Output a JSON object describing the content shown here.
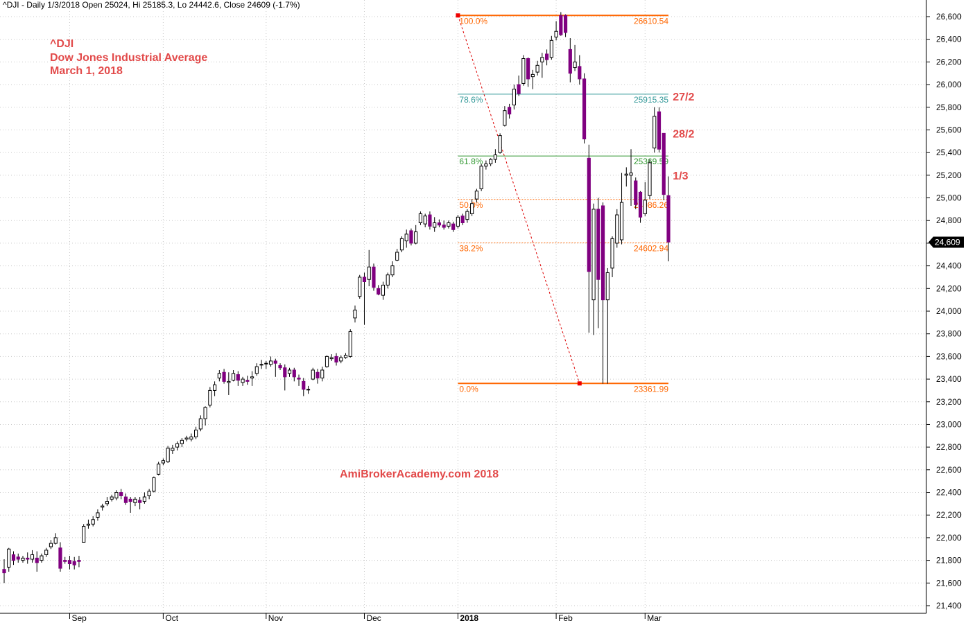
{
  "header": {
    "text": "^DJI - Daily 1/3/2018 Open 25024, Hi 25185.3, Lo 24442.6, Close 24609 (-1.7%)"
  },
  "chart_title": {
    "line1": "^DJI",
    "line2": "Dow Jones Industrial Average",
    "line3": "March 1, 2018"
  },
  "watermark": "AmiBrokerAcademy.com  2018",
  "colors": {
    "bearish": "#800080",
    "bullish_fill": "#ffffff",
    "outline": "#000000",
    "fib_extreme": "#ff6600",
    "fib_786": "#339999",
    "fib_618": "#339933",
    "fib_mid": "#ff6600",
    "annotation": "#e24a4a",
    "grid": "#c8c8c8",
    "price_tag_bg": "#000000",
    "price_tag_text": "#ffffff"
  },
  "chart_data": {
    "type": "candlestick",
    "symbol": "^DJI",
    "ylim": [
      21400,
      26700
    ],
    "y_ticks": [
      21400,
      21600,
      21800,
      22000,
      22200,
      22400,
      22600,
      22800,
      23000,
      23200,
      23400,
      23600,
      23800,
      24000,
      24200,
      24400,
      24600,
      24800,
      25000,
      25200,
      25400,
      25600,
      25800,
      26000,
      26200,
      26400,
      26600
    ],
    "y_tick_labels": [
      "21,400",
      "21,600",
      "21,800",
      "22,000",
      "22,200",
      "22,400",
      "22,600",
      "22,800",
      "23,000",
      "23,200",
      "23,400",
      "23,600",
      "23,800",
      "24,000",
      "24,200",
      "24,400",
      "24,600",
      "24,800",
      "25,000",
      "25,200",
      "25,400",
      "25,600",
      "25,800",
      "26,000",
      "26,200",
      "26,400",
      "26,600"
    ],
    "x_month_labels": [
      {
        "index": 14,
        "label": "Sep",
        "bold": false
      },
      {
        "index": 34,
        "label": "Oct",
        "bold": false
      },
      {
        "index": 56,
        "label": "Nov",
        "bold": false
      },
      {
        "index": 77,
        "label": "Dec",
        "bold": false
      },
      {
        "index": 97,
        "label": "2018",
        "bold": true
      },
      {
        "index": 118,
        "label": "Feb",
        "bold": false
      },
      {
        "index": 137,
        "label": "Mar",
        "bold": false
      }
    ],
    "last_price_label": "24,609",
    "last_price": 24609,
    "ohlc": [
      [
        21720,
        21690,
        21810,
        21600
      ],
      [
        21740,
        21900,
        21910,
        21700
      ],
      [
        21850,
        21800,
        21880,
        21760
      ],
      [
        21830,
        21810,
        21860,
        21780
      ],
      [
        21800,
        21820,
        21840,
        21780
      ],
      [
        21820,
        21810,
        21870,
        21770
      ],
      [
        21810,
        21850,
        21890,
        21780
      ],
      [
        21820,
        21780,
        21880,
        21700
      ],
      [
        21800,
        21840,
        21860,
        21780
      ],
      [
        21850,
        21890,
        21910,
        21830
      ],
      [
        21920,
        21950,
        21980,
        21900
      ],
      [
        21950,
        22000,
        22040,
        21940
      ],
      [
        21910,
        21730,
        21960,
        21700
      ],
      [
        21800,
        21790,
        21830,
        21770
      ],
      [
        21800,
        21770,
        21840,
        21720
      ],
      [
        21790,
        21760,
        21830,
        21720
      ],
      [
        21800,
        21790,
        21840,
        21740
      ],
      [
        21960,
        22100,
        22120,
        21960
      ],
      [
        22110,
        22120,
        22160,
        22080
      ],
      [
        22120,
        22160,
        22190,
        22100
      ],
      [
        22180,
        22220,
        22250,
        22150
      ],
      [
        22270,
        22280,
        22300,
        22240
      ],
      [
        22300,
        22320,
        22360,
        22280
      ],
      [
        22340,
        22360,
        22380,
        22320
      ],
      [
        22350,
        22400,
        22420,
        22330
      ],
      [
        22400,
        22370,
        22430,
        22340
      ],
      [
        22360,
        22310,
        22390,
        22290
      ],
      [
        22340,
        22320,
        22360,
        22220
      ],
      [
        22310,
        22340,
        22360,
        22280
      ],
      [
        22330,
        22310,
        22360,
        22250
      ],
      [
        22320,
        22360,
        22400,
        22300
      ],
      [
        22370,
        22410,
        22430,
        22340
      ],
      [
        22410,
        22530,
        22540,
        22400
      ],
      [
        22560,
        22650,
        22670,
        22550
      ],
      [
        22660,
        22680,
        22700,
        22640
      ],
      [
        22670,
        22790,
        22810,
        22660
      ],
      [
        22770,
        22790,
        22820,
        22740
      ],
      [
        22800,
        22830,
        22850,
        22770
      ],
      [
        22830,
        22860,
        22880,
        22800
      ],
      [
        22870,
        22880,
        22900,
        22850
      ],
      [
        22870,
        22890,
        22920,
        22850
      ],
      [
        22890,
        22950,
        22980,
        22870
      ],
      [
        22960,
        23050,
        23080,
        22940
      ],
      [
        23050,
        23150,
        23160,
        22990
      ],
      [
        23170,
        23300,
        23330,
        23150
      ],
      [
        23300,
        23350,
        23380,
        23250
      ],
      [
        23410,
        23450,
        23480,
        23380
      ],
      [
        23460,
        23380,
        23490,
        23360
      ],
      [
        23370,
        23380,
        23460,
        23260
      ],
      [
        23390,
        23450,
        23480,
        23380
      ],
      [
        23440,
        23390,
        23470,
        23340
      ],
      [
        23370,
        23400,
        23420,
        23340
      ],
      [
        23390,
        23380,
        23430,
        23350
      ],
      [
        23410,
        23420,
        23470,
        23340
      ],
      [
        23450,
        23510,
        23540,
        23430
      ],
      [
        23530,
        23530,
        23570,
        23490
      ],
      [
        23540,
        23540,
        23560,
        23490
      ],
      [
        23530,
        23560,
        23600,
        23510
      ],
      [
        23560,
        23540,
        23580,
        23420
      ],
      [
        23520,
        23500,
        23540,
        23480
      ],
      [
        23500,
        23420,
        23530,
        23300
      ],
      [
        23450,
        23480,
        23500,
        23420
      ],
      [
        23480,
        23420,
        23500,
        23380
      ],
      [
        23410,
        23400,
        23440,
        23340
      ],
      [
        23380,
        23310,
        23410,
        23250
      ],
      [
        23310,
        23310,
        23340,
        23270
      ],
      [
        23400,
        23480,
        23500,
        23390
      ],
      [
        23460,
        23410,
        23490,
        23360
      ],
      [
        23410,
        23480,
        23510,
        23380
      ],
      [
        23510,
        23600,
        23610,
        23500
      ],
      [
        23580,
        23590,
        23620,
        23560
      ],
      [
        23600,
        23550,
        23630,
        23520
      ],
      [
        23560,
        23590,
        23610,
        23540
      ],
      [
        23590,
        23610,
        23630,
        23580
      ],
      [
        23600,
        23820,
        23840,
        23590
      ],
      [
        23940,
        24010,
        24050,
        23900
      ],
      [
        24130,
        24300,
        24320,
        24110
      ],
      [
        24300,
        24260,
        24340,
        23880
      ],
      [
        24280,
        24390,
        24540,
        24220
      ],
      [
        24390,
        24210,
        24420,
        24180
      ],
      [
        24200,
        24150,
        24230,
        24140
      ],
      [
        24140,
        24230,
        24260,
        24100
      ],
      [
        24230,
        24320,
        24340,
        24200
      ],
      [
        24320,
        24400,
        24440,
        24300
      ],
      [
        24450,
        24520,
        24550,
        24440
      ],
      [
        24540,
        24640,
        24660,
        24520
      ],
      [
        24620,
        24680,
        24720,
        24560
      ],
      [
        24710,
        24600,
        24730,
        24580
      ],
      [
        24600,
        24700,
        24760,
        24590
      ],
      [
        24780,
        24860,
        24880,
        24760
      ],
      [
        24770,
        24840,
        24860,
        24740
      ],
      [
        24850,
        24750,
        24880,
        24720
      ],
      [
        24740,
        24780,
        24830,
        24700
      ],
      [
        24780,
        24760,
        24810,
        24740
      ],
      [
        24760,
        24740,
        24800,
        24720
      ],
      [
        24750,
        24780,
        24800,
        24730
      ],
      [
        24770,
        24720,
        24790,
        24700
      ],
      [
        24750,
        24830,
        24850,
        24730
      ],
      [
        24840,
        24780,
        24860,
        24760
      ],
      [
        24810,
        24880,
        24900,
        24780
      ],
      [
        24860,
        24950,
        24990,
        24840
      ],
      [
        24990,
        25060,
        25080,
        24960
      ],
      [
        25080,
        25280,
        25300,
        25060
      ],
      [
        25280,
        25300,
        25330,
        25250
      ],
      [
        25300,
        25340,
        25350,
        25280
      ],
      [
        25340,
        25380,
        25430,
        25310
      ],
      [
        25400,
        25550,
        25570,
        25390
      ],
      [
        25640,
        25770,
        25810,
        25630
      ],
      [
        25800,
        25740,
        25830,
        25700
      ],
      [
        25820,
        25960,
        26000,
        25780
      ],
      [
        26000,
        25920,
        26080,
        25900
      ],
      [
        26010,
        26230,
        26260,
        25990
      ],
      [
        26230,
        26050,
        26240,
        25980
      ],
      [
        26070,
        26090,
        26130,
        25960
      ],
      [
        26110,
        26170,
        26210,
        26080
      ],
      [
        26200,
        26240,
        26280,
        26060
      ],
      [
        26270,
        26220,
        26310,
        26170
      ],
      [
        26240,
        26390,
        26430,
        26220
      ],
      [
        26420,
        26470,
        26560,
        26390
      ],
      [
        26610,
        26440,
        26640,
        26430
      ],
      [
        26610,
        26460,
        26620,
        26420
      ],
      [
        26310,
        26100,
        26410,
        26020
      ],
      [
        26150,
        26200,
        26350,
        26120
      ],
      [
        26160,
        26050,
        26260,
        26000
      ],
      [
        26050,
        25520,
        26100,
        25480
      ],
      [
        25350,
        24350,
        25470,
        23810
      ],
      [
        24100,
        24900,
        24950,
        23790
      ],
      [
        24900,
        24280,
        25000,
        23850
      ],
      [
        24930,
        24100,
        24960,
        23360
      ],
      [
        24100,
        24340,
        24380,
        23360
      ],
      [
        24380,
        24640,
        24660,
        24300
      ],
      [
        24600,
        24850,
        24900,
        24560
      ],
      [
        24630,
        24960,
        25220,
        24590
      ],
      [
        25200,
        25210,
        25270,
        25100
      ],
      [
        25200,
        25220,
        25430,
        24930
      ],
      [
        25150,
        24940,
        25180,
        24900
      ],
      [
        25050,
        24830,
        25060,
        24780
      ],
      [
        24860,
        24980,
        25140,
        24840
      ],
      [
        25020,
        25310,
        25340,
        24990
      ],
      [
        25440,
        25720,
        25800,
        25400
      ],
      [
        25760,
        25430,
        25800,
        25400
      ],
      [
        25570,
        25030,
        25570,
        24980
      ],
      [
        25020,
        24610,
        25190,
        24440
      ]
    ],
    "fib_lines": [
      {
        "pct_label": "100.0%",
        "value_label": "26610.54",
        "value": 26610.54,
        "style": "solid"
      },
      {
        "pct_label": "78.6%",
        "value_label": "25915.35",
        "value": 25915.35,
        "style": "solid"
      },
      {
        "pct_label": "61.8%",
        "value_label": "25369.59",
        "value": 25369.59,
        "style": "solid"
      },
      {
        "pct_label": "50.0%",
        "value_label": "24986.26",
        "value": 24986.26,
        "style": "dotted"
      },
      {
        "pct_label": "38.2%",
        "value_label": "24602.94",
        "value": 24602.94,
        "style": "dotted"
      },
      {
        "pct_label": "0.0%",
        "value_label": "23361.99",
        "value": 23361.99,
        "style": "solid"
      }
    ],
    "fib_start_index": 97,
    "fib_end_index": 142,
    "fib_trend": {
      "from": [
        97,
        26610.54
      ],
      "to": [
        123,
        23361.99
      ]
    },
    "annotations": [
      {
        "text": "27/2",
        "index": 141,
        "price": 25800
      },
      {
        "text": "28/2",
        "index": 141,
        "price": 25470
      },
      {
        "text": "1/3",
        "index": 141,
        "price": 25100
      }
    ]
  }
}
